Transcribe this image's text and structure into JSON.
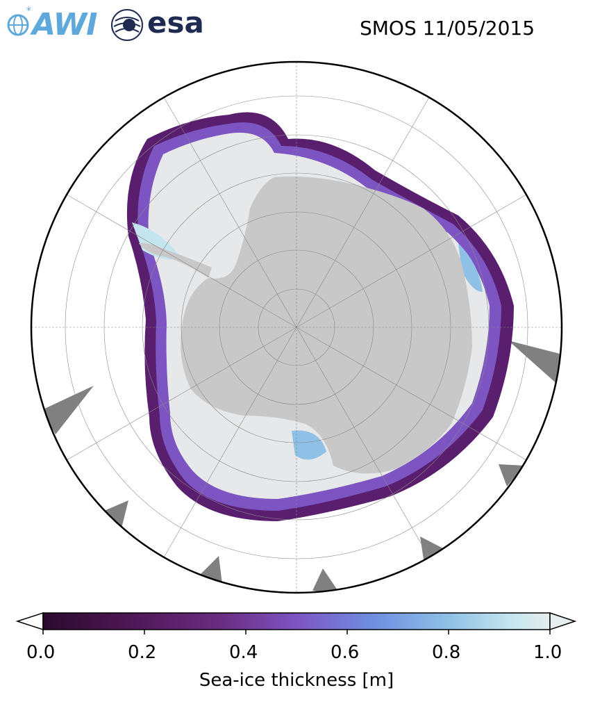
{
  "header": {
    "awi_logo_text": "AWI",
    "esa_logo_text": "esa",
    "title": "SMOS 11/05/2015"
  },
  "map": {
    "projection": "south-polar-stereographic",
    "land_color": "#c8c8c8",
    "missing_data_color": "#808080",
    "ocean_color": "#ffffff",
    "graticule": true
  },
  "colorbar": {
    "label": "Sea-ice thickness [m]",
    "ticks": [
      "0.0",
      "0.2",
      "0.4",
      "0.6",
      "0.8",
      "1.0"
    ],
    "range": [
      0.0,
      1.0
    ],
    "colormap": [
      "#2b0a2e",
      "#4a1550",
      "#6a2c82",
      "#7d55c2",
      "#6f8ee0",
      "#8fc1e6",
      "#c4e4ee",
      "#e6eeee"
    ],
    "extend": "both"
  }
}
